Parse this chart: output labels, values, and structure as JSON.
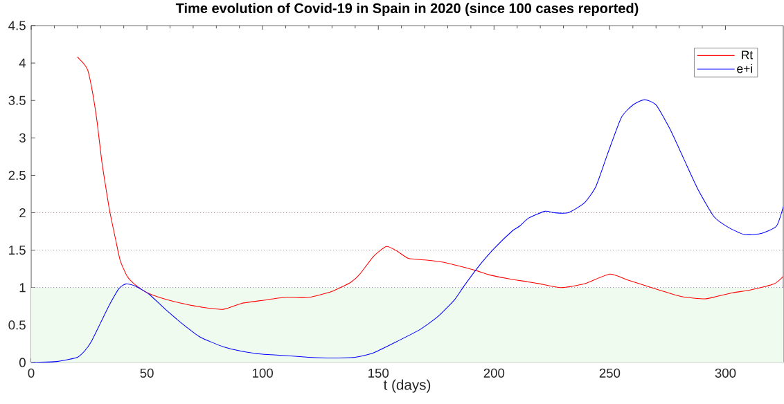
{
  "chart_data": {
    "type": "line",
    "title": "Time evolution of Covid-19 in Spain in 2020 (since 100 cases reported)",
    "xlabel": "t (days)",
    "xlim": [
      0,
      325
    ],
    "xticks": [
      0,
      50,
      100,
      150,
      200,
      250,
      300
    ],
    "ylim": [
      0,
      4.5
    ],
    "yticks": [
      0,
      0.5,
      1,
      1.5,
      2,
      2.5,
      3,
      3.5,
      4,
      4.5
    ],
    "legend": "top right",
    "line_style": "solid",
    "bands": [
      {
        "axis": "y",
        "from": 0,
        "to": 1,
        "color": "#f0fbf0"
      }
    ],
    "ref_lines": [
      {
        "axis": "y",
        "value": 1,
        "color": "#4040ff",
        "line_style": "dotted"
      },
      {
        "axis": "y",
        "value": 1.5,
        "color": "#808080",
        "line_style": "dotted"
      },
      {
        "axis": "y",
        "value": 2,
        "color": "#ff4040",
        "line_style": "dotted"
      }
    ],
    "series": [
      {
        "name": "Rt",
        "color": "#ff0000",
        "x": [
          20,
          23,
          24.5,
          26.5,
          28.5,
          30.5,
          32.5,
          34,
          36.5,
          38.5,
          41.5,
          44.5,
          48.5,
          52.5,
          58.5,
          66.5,
          73.5,
          83,
          91,
          100,
          110,
          120,
          130,
          138,
          142,
          148,
          153.5,
          158,
          163,
          170,
          178,
          186,
          192,
          198,
          206,
          214,
          220,
          229,
          239,
          250,
          258,
          269,
          281,
          291,
          296,
          303,
          311,
          321,
          325
        ],
        "values": [
          4.08,
          3.98,
          3.9,
          3.61,
          3.21,
          2.69,
          2.29,
          2.01,
          1.64,
          1.36,
          1.15,
          1.05,
          0.96,
          0.9,
          0.84,
          0.78,
          0.74,
          0.71,
          0.79,
          0.83,
          0.87,
          0.87,
          0.95,
          1.07,
          1.18,
          1.42,
          1.55,
          1.49,
          1.39,
          1.37,
          1.34,
          1.28,
          1.23,
          1.17,
          1.12,
          1.08,
          1.05,
          1.0,
          1.05,
          1.18,
          1.1,
          0.99,
          0.88,
          0.85,
          0.88,
          0.93,
          0.97,
          1.05,
          1.15
        ]
      },
      {
        "name": "e+i",
        "color": "#0000ff",
        "x": [
          0,
          10,
          16,
          20,
          23,
          26,
          30,
          34,
          38,
          41,
          45,
          51,
          58,
          66,
          73,
          83,
          91,
          100,
          106,
          120,
          130,
          140,
          148,
          158,
          168,
          176,
          183,
          187,
          193,
          200,
          208,
          211,
          215,
          222,
          226,
          232,
          239,
          244,
          249,
          255,
          260,
          265,
          270,
          276,
          282,
          288,
          295,
          301,
          308,
          315,
          322,
          325
        ],
        "values": [
          0,
          0.01,
          0.04,
          0.07,
          0.15,
          0.28,
          0.53,
          0.78,
          0.99,
          1.05,
          1.02,
          0.91,
          0.71,
          0.5,
          0.34,
          0.21,
          0.15,
          0.11,
          0.1,
          0.07,
          0.06,
          0.07,
          0.13,
          0.28,
          0.44,
          0.62,
          0.84,
          1.02,
          1.27,
          1.52,
          1.76,
          1.82,
          1.93,
          2.02,
          2.0,
          2.0,
          2.13,
          2.35,
          2.78,
          3.27,
          3.44,
          3.51,
          3.44,
          3.12,
          2.72,
          2.32,
          1.95,
          1.81,
          1.71,
          1.72,
          1.82,
          2.08
        ]
      }
    ]
  }
}
